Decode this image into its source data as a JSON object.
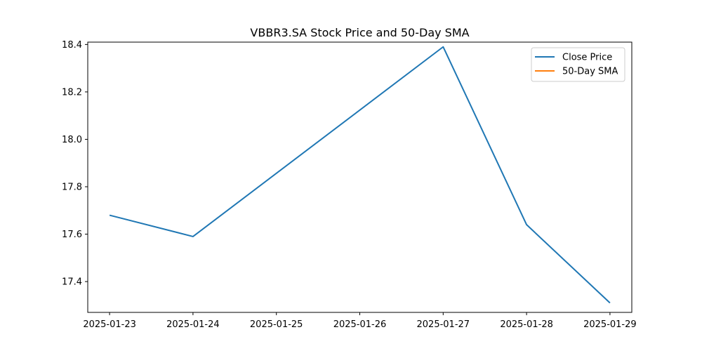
{
  "chart_data": {
    "type": "line",
    "title": "VBBR3.SA Stock Price and 50-Day SMA",
    "xlabel": "",
    "ylabel": "",
    "x": [
      "2025-01-23",
      "2025-01-24",
      "2025-01-25",
      "2025-01-26",
      "2025-01-27",
      "2025-01-28",
      "2025-01-29"
    ],
    "x_tick_labels": [
      "2025-01-23",
      "2025-01-24",
      "2025-01-25",
      "2025-01-26",
      "2025-01-27",
      "2025-01-28",
      "2025-01-29"
    ],
    "y_ticks": [
      17.4,
      17.6,
      17.8,
      18.0,
      18.2,
      18.4
    ],
    "y_tick_labels": [
      "17.4",
      "17.6",
      "17.8",
      "18.0",
      "18.2",
      "18.4"
    ],
    "xlim": [
      "2025-01-22T17:43",
      "2025-01-29T06:17"
    ],
    "ylim": [
      17.27,
      18.41
    ],
    "grid": false,
    "legend_position": "top-right",
    "series": [
      {
        "name": "Close Price",
        "color": "#1f77b4",
        "points": [
          {
            "x": "2025-01-23",
            "y": 17.68
          },
          {
            "x": "2025-01-24",
            "y": 17.59
          },
          {
            "x": "2025-01-27",
            "y": 18.39
          },
          {
            "x": "2025-01-28",
            "y": 17.64
          },
          {
            "x": "2025-01-29",
            "y": 17.31
          }
        ]
      },
      {
        "name": "50-Day SMA",
        "color": "#ff7f0e",
        "points": []
      }
    ]
  }
}
